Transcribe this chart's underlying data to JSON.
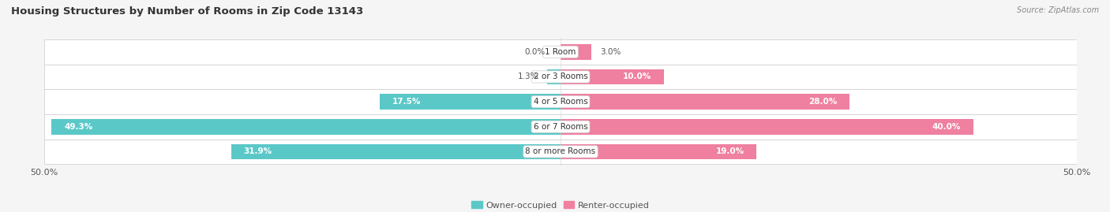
{
  "title": "Housing Structures by Number of Rooms in Zip Code 13143",
  "source": "Source: ZipAtlas.com",
  "categories": [
    "1 Room",
    "2 or 3 Rooms",
    "4 or 5 Rooms",
    "6 or 7 Rooms",
    "8 or more Rooms"
  ],
  "owner_values": [
    0.0,
    1.3,
    17.5,
    49.3,
    31.9
  ],
  "renter_values": [
    3.0,
    10.0,
    28.0,
    40.0,
    19.0
  ],
  "owner_color": "#5BC8C8",
  "renter_color": "#F080A0",
  "axis_limit": 50.0,
  "bg_color": "#f5f5f5",
  "row_bg": "#ffffff",
  "row_border": "#dddddd",
  "title_fontsize": 9.5,
  "value_fontsize": 7.5,
  "cat_fontsize": 7.5,
  "tick_fontsize": 8,
  "legend_fontsize": 8
}
